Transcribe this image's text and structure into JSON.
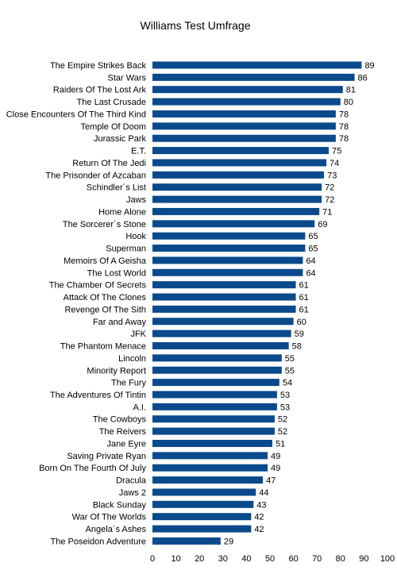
{
  "chart_data": {
    "type": "bar",
    "orientation": "horizontal",
    "title": "Williams Test Umfrage",
    "xlabel": "",
    "ylabel": "",
    "xlim": [
      0,
      100
    ],
    "xticks": [
      0,
      10,
      20,
      30,
      40,
      50,
      60,
      70,
      80,
      90,
      100
    ],
    "grid": false,
    "legend": "none",
    "bar_color": "#0a4a8c",
    "data_labels": true,
    "categories": [
      "The Empire Strikes Back",
      "Star Wars",
      "Raiders Of The Lost Ark",
      "The Last Crusade",
      "Close Encounters Of The Third Kind",
      "Temple Of Doom",
      "Jurassic Park",
      "E.T.",
      "Return Of The Jedi",
      "The Prisonder of Azcaban",
      "Schindler´s List",
      "Jaws",
      "Home Alone",
      "The Sorcerer´s Stone",
      "Hook",
      "Superman",
      "Memoirs Of A Geisha",
      "The Lost World",
      "The Chamber Of Secrets",
      "Attack Of The Clones",
      "Revenge Of The Sith",
      "Far and Away",
      "JFK",
      "The Phantom Menace",
      "Lincoln",
      "Minority Report",
      "The Fury",
      "The Adventures Of Tintin",
      "A.I.",
      "The Cowboys",
      "The Reivers",
      "Jane Eyre",
      "Saving Private Ryan",
      "Born On The Fourth Of July",
      "Dracula",
      "Jaws 2",
      "Black Sunday",
      "War Of The Worlds",
      "Angela´s Ashes",
      "The Poseidon Adventure"
    ],
    "values": [
      89,
      86,
      81,
      80,
      78,
      78,
      78,
      75,
      74,
      73,
      72,
      72,
      71,
      69,
      65,
      65,
      64,
      64,
      61,
      61,
      61,
      60,
      59,
      58,
      55,
      55,
      54,
      53,
      53,
      52,
      52,
      51,
      49,
      49,
      47,
      44,
      43,
      42,
      42,
      29
    ]
  }
}
